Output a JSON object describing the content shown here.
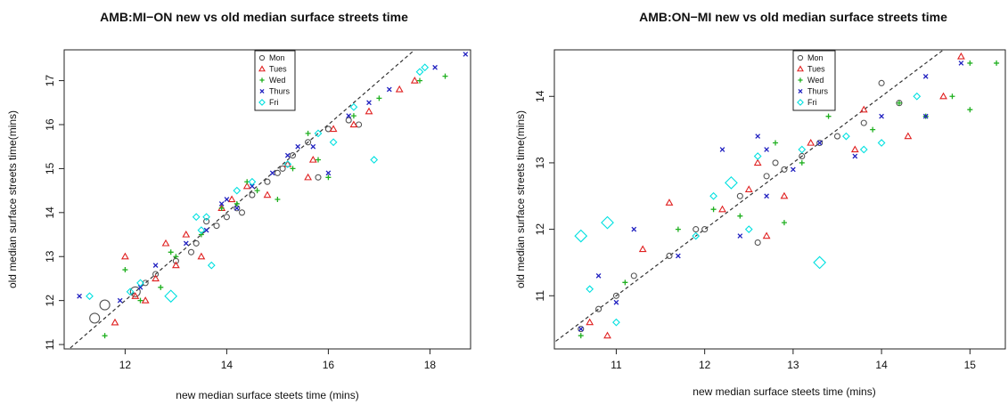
{
  "chart_data": [
    {
      "type": "scatter",
      "title": "AMB:MI−ON new vs old median surface streets time",
      "xlabel": "new median surface steets time (mins)",
      "ylabel": "old median surface streets time(mins)",
      "xlim": [
        10.8,
        18.8
      ],
      "ylim": [
        10.9,
        17.7
      ],
      "xticks": [
        "12",
        "14",
        "16",
        "18"
      ],
      "yticks": [
        "11",
        "12",
        "13",
        "14",
        "15",
        "16",
        "17"
      ],
      "reference_line": "y = x (dashed)",
      "legend_position": "top-center",
      "series": [
        {
          "name": "Mon",
          "marker": "circle",
          "color": "#555555",
          "points": [
            [
              11.4,
              11.6
            ],
            [
              11.6,
              11.9
            ],
            [
              12.2,
              12.2
            ],
            [
              12.6,
              12.6
            ],
            [
              13.0,
              12.9
            ],
            [
              13.3,
              13.1
            ],
            [
              13.6,
              13.8
            ],
            [
              13.8,
              13.7
            ],
            [
              14.0,
              13.9
            ],
            [
              14.2,
              14.1
            ],
            [
              14.5,
              14.4
            ],
            [
              14.8,
              14.7
            ],
            [
              15.0,
              14.9
            ],
            [
              15.1,
              15.0
            ],
            [
              15.3,
              15.3
            ],
            [
              15.6,
              15.6
            ],
            [
              15.8,
              14.8
            ],
            [
              16.0,
              15.9
            ],
            [
              16.4,
              16.1
            ],
            [
              16.6,
              16.0
            ],
            [
              12.4,
              12.4
            ],
            [
              13.4,
              13.3
            ],
            [
              14.3,
              14.0
            ]
          ],
          "sizes": [
            2,
            2,
            2,
            1,
            1,
            1,
            1,
            1,
            1,
            1,
            1,
            1,
            1,
            1,
            1,
            1,
            1,
            1,
            1,
            1,
            1,
            1,
            1
          ]
        },
        {
          "name": "Tues",
          "marker": "triangle",
          "color": "#e02020",
          "points": [
            [
              11.8,
              11.5
            ],
            [
              12.0,
              13.0
            ],
            [
              12.2,
              12.1
            ],
            [
              12.6,
              12.5
            ],
            [
              12.8,
              13.3
            ],
            [
              13.0,
              12.8
            ],
            [
              13.5,
              13.0
            ],
            [
              13.9,
              14.1
            ],
            [
              14.1,
              14.3
            ],
            [
              14.4,
              14.6
            ],
            [
              14.8,
              14.4
            ],
            [
              15.2,
              15.1
            ],
            [
              15.6,
              14.8
            ],
            [
              15.7,
              15.2
            ],
            [
              16.1,
              15.9
            ],
            [
              16.5,
              16.0
            ],
            [
              16.8,
              16.3
            ],
            [
              17.4,
              16.8
            ],
            [
              17.7,
              17.0
            ],
            [
              12.4,
              12.0
            ],
            [
              13.2,
              13.5
            ]
          ],
          "sizes": [
            1,
            1,
            1,
            1,
            1,
            1,
            1,
            1,
            1,
            1,
            1,
            1,
            1,
            1,
            1,
            1,
            1,
            1,
            1,
            1,
            1
          ]
        },
        {
          "name": "Wed",
          "marker": "plus",
          "color": "#20b020",
          "points": [
            [
              11.6,
              11.2
            ],
            [
              12.0,
              12.7
            ],
            [
              12.3,
              12.0
            ],
            [
              12.7,
              12.3
            ],
            [
              13.0,
              13.0
            ],
            [
              13.5,
              13.5
            ],
            [
              13.9,
              14.1
            ],
            [
              14.2,
              14.2
            ],
            [
              14.6,
              14.5
            ],
            [
              15.0,
              14.3
            ],
            [
              15.3,
              15.0
            ],
            [
              15.6,
              15.8
            ],
            [
              15.8,
              15.2
            ],
            [
              16.0,
              14.8
            ],
            [
              16.5,
              16.2
            ],
            [
              17.0,
              16.6
            ],
            [
              17.8,
              17.0
            ],
            [
              18.3,
              17.1
            ],
            [
              12.9,
              13.1
            ],
            [
              14.4,
              14.7
            ]
          ],
          "sizes": [
            1,
            1,
            1,
            1,
            1,
            1,
            1,
            1,
            1,
            1,
            1,
            1,
            1,
            1,
            1,
            1,
            1,
            1,
            1,
            1
          ]
        },
        {
          "name": "Thurs",
          "marker": "cross",
          "color": "#2020c0",
          "points": [
            [
              11.1,
              12.1
            ],
            [
              11.9,
              12.0
            ],
            [
              12.3,
              12.3
            ],
            [
              12.6,
              12.8
            ],
            [
              13.2,
              13.3
            ],
            [
              13.6,
              13.6
            ],
            [
              13.9,
              14.2
            ],
            [
              14.2,
              14.1
            ],
            [
              14.5,
              14.6
            ],
            [
              14.9,
              14.9
            ],
            [
              15.2,
              15.3
            ],
            [
              15.4,
              15.5
            ],
            [
              15.7,
              15.5
            ],
            [
              16.0,
              14.9
            ],
            [
              16.4,
              16.2
            ],
            [
              16.8,
              16.5
            ],
            [
              17.2,
              16.8
            ],
            [
              18.1,
              17.3
            ],
            [
              18.7,
              17.6
            ],
            [
              14.0,
              14.3
            ]
          ],
          "sizes": [
            1,
            1,
            1,
            1,
            1,
            1,
            1,
            1,
            1,
            1,
            1,
            1,
            1,
            1,
            1,
            1,
            1,
            1,
            1,
            1
          ]
        },
        {
          "name": "Fri",
          "marker": "diamond",
          "color": "#00e0e0",
          "points": [
            [
              11.3,
              12.1
            ],
            [
              12.1,
              12.2
            ],
            [
              12.9,
              12.1
            ],
            [
              13.4,
              13.9
            ],
            [
              13.5,
              13.6
            ],
            [
              13.7,
              12.8
            ],
            [
              14.2,
              14.5
            ],
            [
              14.5,
              14.7
            ],
            [
              15.2,
              15.1
            ],
            [
              15.8,
              15.8
            ],
            [
              16.1,
              15.6
            ],
            [
              16.5,
              16.4
            ],
            [
              16.9,
              15.2
            ],
            [
              17.8,
              17.2
            ],
            [
              17.9,
              17.3
            ],
            [
              13.6,
              13.9
            ],
            [
              12.3,
              12.4
            ]
          ],
          "sizes": [
            1,
            1,
            2,
            1,
            1,
            1,
            1,
            1,
            1,
            1,
            1,
            1,
            1,
            1,
            1,
            1,
            1
          ]
        }
      ]
    },
    {
      "type": "scatter",
      "title": "AMB:ON−MI new vs old median surface streets time",
      "xlabel": "new median surface steets time (mins)",
      "ylabel": "old median surface streets time(mins)",
      "xlim": [
        10.3,
        15.4
      ],
      "ylim": [
        10.2,
        14.7
      ],
      "xticks": [
        "11",
        "12",
        "13",
        "14",
        "15"
      ],
      "yticks": [
        "11",
        "12",
        "13",
        "14"
      ],
      "reference_line": "y = x (dashed)",
      "legend_position": "top-center",
      "series": [
        {
          "name": "Mon",
          "marker": "circle",
          "color": "#555555",
          "points": [
            [
              10.6,
              10.5
            ],
            [
              10.8,
              10.8
            ],
            [
              11.0,
              11.0
            ],
            [
              11.2,
              11.3
            ],
            [
              11.6,
              11.6
            ],
            [
              12.0,
              12.0
            ],
            [
              12.4,
              12.5
            ],
            [
              12.6,
              11.8
            ],
            [
              12.7,
              12.8
            ],
            [
              12.9,
              12.9
            ],
            [
              13.1,
              13.1
            ],
            [
              13.3,
              13.3
            ],
            [
              13.5,
              13.4
            ],
            [
              13.8,
              13.6
            ],
            [
              14.0,
              14.2
            ],
            [
              14.2,
              13.9
            ],
            [
              12.8,
              13.0
            ],
            [
              11.9,
              12.0
            ]
          ],
          "sizes": [
            1,
            1,
            1,
            1,
            1,
            1,
            1,
            1,
            1,
            1,
            1,
            1,
            1,
            1,
            1,
            1,
            1,
            1
          ]
        },
        {
          "name": "Tues",
          "marker": "triangle",
          "color": "#e02020",
          "points": [
            [
              10.7,
              10.6
            ],
            [
              10.9,
              10.4
            ],
            [
              11.3,
              11.7
            ],
            [
              11.6,
              12.4
            ],
            [
              12.2,
              12.3
            ],
            [
              12.5,
              12.6
            ],
            [
              12.7,
              11.9
            ],
            [
              12.9,
              12.5
            ],
            [
              13.2,
              13.3
            ],
            [
              13.8,
              13.8
            ],
            [
              14.3,
              13.4
            ],
            [
              14.7,
              14.0
            ],
            [
              14.9,
              14.6
            ],
            [
              12.6,
              13.0
            ],
            [
              13.7,
              13.2
            ]
          ],
          "sizes": [
            1,
            1,
            1,
            1,
            1,
            1,
            1,
            1,
            1,
            1,
            1,
            1,
            1,
            1,
            1
          ]
        },
        {
          "name": "Wed",
          "marker": "plus",
          "color": "#20b020",
          "points": [
            [
              10.6,
              10.4
            ],
            [
              11.1,
              11.2
            ],
            [
              11.7,
              12.0
            ],
            [
              12.1,
              12.3
            ],
            [
              12.4,
              12.2
            ],
            [
              12.8,
              13.3
            ],
            [
              12.9,
              12.1
            ],
            [
              13.1,
              13.0
            ],
            [
              13.4,
              13.7
            ],
            [
              13.9,
              13.5
            ],
            [
              14.2,
              13.9
            ],
            [
              14.5,
              13.7
            ],
            [
              14.8,
              14.0
            ],
            [
              15.0,
              14.5
            ],
            [
              15.3,
              14.5
            ],
            [
              15.0,
              13.8
            ]
          ],
          "sizes": [
            1,
            1,
            1,
            1,
            1,
            1,
            1,
            1,
            1,
            1,
            1,
            1,
            1,
            1,
            1,
            1
          ]
        },
        {
          "name": "Thurs",
          "marker": "cross",
          "color": "#2020c0",
          "points": [
            [
              10.6,
              10.5
            ],
            [
              10.8,
              11.3
            ],
            [
              11.0,
              10.9
            ],
            [
              11.2,
              12.0
            ],
            [
              11.7,
              11.6
            ],
            [
              12.2,
              13.2
            ],
            [
              12.4,
              11.9
            ],
            [
              12.6,
              13.4
            ],
            [
              12.7,
              13.2
            ],
            [
              13.0,
              12.9
            ],
            [
              13.3,
              13.3
            ],
            [
              13.7,
              13.1
            ],
            [
              14.0,
              13.7
            ],
            [
              14.5,
              14.3
            ],
            [
              14.9,
              14.5
            ],
            [
              14.5,
              13.7
            ],
            [
              12.7,
              12.5
            ]
          ],
          "sizes": [
            1,
            1,
            1,
            1,
            1,
            1,
            1,
            1,
            1,
            1,
            1,
            1,
            1,
            1,
            1,
            1,
            1
          ]
        },
        {
          "name": "Fri",
          "marker": "diamond",
          "color": "#00e0e0",
          "points": [
            [
              10.6,
              11.9
            ],
            [
              10.9,
              12.1
            ],
            [
              10.7,
              11.1
            ],
            [
              11.0,
              10.6
            ],
            [
              11.9,
              11.9
            ],
            [
              12.1,
              12.5
            ],
            [
              12.3,
              12.7
            ],
            [
              12.6,
              13.1
            ],
            [
              13.1,
              13.2
            ],
            [
              13.3,
              11.5
            ],
            [
              13.6,
              13.4
            ],
            [
              13.8,
              13.2
            ],
            [
              14.0,
              13.3
            ],
            [
              14.4,
              14.0
            ],
            [
              12.5,
              12.0
            ]
          ],
          "sizes": [
            2,
            2,
            1,
            1,
            1,
            1,
            2,
            1,
            1,
            2,
            1,
            1,
            1,
            1,
            1
          ]
        }
      ]
    }
  ]
}
